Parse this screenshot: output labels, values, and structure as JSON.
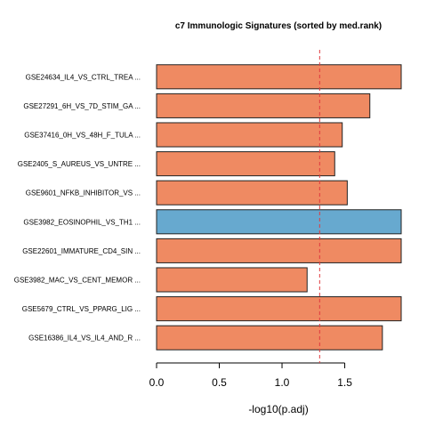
{
  "chart_data": {
    "type": "bar",
    "orientation": "horizontal",
    "title": "c7 Immunologic Signatures (sorted by med.rank)",
    "xlabel": "-log10(p.adj)",
    "ylabel": "",
    "xlim": [
      0,
      1.95
    ],
    "xticks": [
      "0.0",
      "0.5",
      "1.0",
      "1.5"
    ],
    "grid": false,
    "threshold": {
      "value": 1.3,
      "color": "#e0393e",
      "style": "dashed"
    },
    "categories": [
      "GSE24634_IL4_VS_CTRL_TREA ...",
      "GSE27291_6H_VS_7D_STIM_GA ...",
      "GSE37416_0H_VS_48H_F_TULA ...",
      "GSE2405_S_AUREUS_VS_UNTRE ...",
      "GSE9601_NFKB_INHIBITOR_VS ...",
      "GSE3982_EOSINOPHIL_VS_TH1 ...",
      "GSE22601_IMMATURE_CD4_SIN ...",
      "GSE3982_MAC_VS_CENT_MEMOR ...",
      "GSE5679_CTRL_VS_PPARG_LIG ...",
      "GSE16386_IL4_VS_IL4_AND_R ..."
    ],
    "values": [
      1.95,
      1.7,
      1.48,
      1.42,
      1.52,
      1.95,
      1.95,
      1.2,
      1.95,
      1.8
    ],
    "bar_colors": [
      "#ef8a62",
      "#ef8a62",
      "#ef8a62",
      "#ef8a62",
      "#ef8a62",
      "#67a9cf",
      "#ef8a62",
      "#ef8a62",
      "#ef8a62",
      "#ef8a62"
    ]
  }
}
